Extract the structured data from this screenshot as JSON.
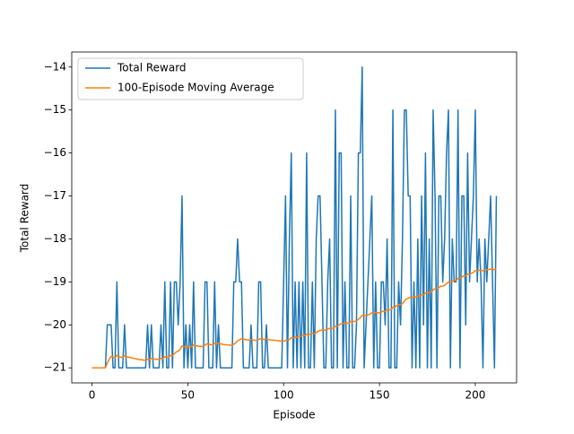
{
  "chart_data": {
    "type": "line",
    "x_label": "Episode",
    "y_label": "Total Reward",
    "x": [
      0,
      1,
      2,
      3,
      4,
      5,
      6,
      7,
      8,
      9,
      10,
      11,
      12,
      13,
      14,
      15,
      16,
      17,
      18,
      19,
      20,
      21,
      22,
      23,
      24,
      25,
      26,
      27,
      28,
      29,
      30,
      31,
      32,
      33,
      34,
      35,
      36,
      37,
      38,
      39,
      40,
      41,
      42,
      43,
      44,
      45,
      46,
      47,
      48,
      49,
      50,
      51,
      52,
      53,
      54,
      55,
      56,
      57,
      58,
      59,
      60,
      61,
      62,
      63,
      64,
      65,
      66,
      67,
      68,
      69,
      70,
      71,
      72,
      73,
      74,
      75,
      76,
      77,
      78,
      79,
      80,
      81,
      82,
      83,
      84,
      85,
      86,
      87,
      88,
      89,
      90,
      91,
      92,
      93,
      94,
      95,
      96,
      97,
      98,
      99,
      100,
      101,
      102,
      103,
      104,
      105,
      106,
      107,
      108,
      109,
      110,
      111,
      112,
      113,
      114,
      115,
      116,
      117,
      118,
      119,
      120,
      121,
      122,
      123,
      124,
      125,
      126,
      127,
      128,
      129,
      130,
      131,
      132,
      133,
      134,
      135,
      136,
      137,
      138,
      139,
      140,
      141,
      142,
      143,
      144,
      145,
      146,
      147,
      148,
      149,
      150,
      151,
      152,
      153,
      154,
      155,
      156,
      157,
      158,
      159,
      160,
      161,
      162,
      163,
      164,
      165,
      166,
      167,
      168,
      169,
      170,
      171,
      172,
      173,
      174,
      175,
      176,
      177,
      178,
      179,
      180,
      181,
      182,
      183,
      184,
      185,
      186,
      187,
      188,
      189,
      190,
      191,
      192,
      193,
      194,
      195,
      196,
      197,
      198,
      199,
      200,
      201,
      202,
      203,
      204,
      205,
      206,
      207,
      208,
      209,
      210,
      211
    ],
    "series": [
      {
        "name": "Total Reward",
        "color": "#1f77b4",
        "values": [
          -21,
          -21,
          -21,
          -21,
          -21,
          -21,
          -21,
          -21,
          -20,
          -20,
          -20,
          -21,
          -21,
          -19,
          -21,
          -21,
          -21,
          -20,
          -21,
          -21,
          -21,
          -21,
          -21,
          -21,
          -21,
          -21,
          -21,
          -21,
          -21,
          -20,
          -21,
          -20,
          -21,
          -21,
          -21,
          -21,
          -20,
          -21,
          -19,
          -21,
          -21,
          -19,
          -21,
          -19,
          -19,
          -20,
          -19,
          -17,
          -21,
          -20,
          -21,
          -20,
          -21,
          -19,
          -21,
          -21,
          -21,
          -21,
          -21,
          -19,
          -19,
          -21,
          -21,
          -21,
          -19,
          -21,
          -20,
          -21,
          -21,
          -21,
          -21,
          -21,
          -21,
          -21,
          -19,
          -19,
          -18,
          -19,
          -19,
          -21,
          -21,
          -21,
          -21,
          -20,
          -21,
          -21,
          -21,
          -19,
          -19,
          -21,
          -21,
          -20,
          -21,
          -21,
          -21,
          -21,
          -21,
          -21,
          -21,
          -21,
          -19,
          -17,
          -21,
          -18,
          -16,
          -21,
          -19,
          -21,
          -19,
          -21,
          -19,
          -21,
          -16,
          -21,
          -21,
          -19,
          -21,
          -18,
          -17,
          -17,
          -19,
          -21,
          -21,
          -19,
          -18,
          -21,
          -21,
          -15,
          -21,
          -16,
          -16,
          -21,
          -19,
          -21,
          -21,
          -17,
          -21,
          -21,
          -20,
          -16,
          -16,
          -14,
          -21,
          -20,
          -19,
          -18,
          -17,
          -21,
          -19,
          -21,
          -21,
          -19,
          -19,
          -20,
          -18,
          -21,
          -21,
          -15,
          -21,
          -21,
          -19,
          -20,
          -18,
          -15,
          -15,
          -17,
          -17,
          -21,
          -19,
          -21,
          -18,
          -21,
          -17,
          -20,
          -16,
          -21,
          -18,
          -21,
          -15,
          -17,
          -21,
          -17,
          -17,
          -19,
          -18,
          -16,
          -15,
          -21,
          -18,
          -19,
          -19,
          -15,
          -21,
          -17,
          -17,
          -20,
          -16,
          -19,
          -18,
          -17,
          -15,
          -19,
          -18,
          -19,
          -21,
          -18,
          -19,
          -18,
          -17,
          -19,
          -21,
          -17
        ]
      },
      {
        "name": "100-Episode Moving Average",
        "color": "#ff7f0e",
        "values": [
          -21,
          -21,
          -21,
          -21,
          -21,
          -21,
          -21,
          -21,
          -20.89,
          -20.8,
          -20.73,
          -20.75,
          -20.77,
          -20.71,
          -20.73,
          -20.75,
          -20.76,
          -20.72,
          -20.74,
          -20.75,
          -20.76,
          -20.77,
          -20.78,
          -20.79,
          -20.8,
          -20.81,
          -20.81,
          -20.82,
          -20.83,
          -20.8,
          -20.81,
          -20.78,
          -20.79,
          -20.8,
          -20.8,
          -20.81,
          -20.78,
          -20.79,
          -20.74,
          -20.75,
          -20.76,
          -20.71,
          -20.72,
          -20.67,
          -20.63,
          -20.61,
          -20.57,
          -20.49,
          -20.51,
          -20.5,
          -20.51,
          -20.5,
          -20.51,
          -20.47,
          -20.48,
          -20.49,
          -20.5,
          -20.5,
          -20.51,
          -20.47,
          -20.44,
          -20.45,
          -20.46,
          -20.47,
          -20.43,
          -20.44,
          -20.43,
          -20.44,
          -20.45,
          -20.46,
          -20.46,
          -20.47,
          -20.47,
          -20.48,
          -20.45,
          -20.42,
          -20.37,
          -20.35,
          -20.32,
          -20.33,
          -20.34,
          -20.35,
          -20.35,
          -20.34,
          -20.35,
          -20.36,
          -20.36,
          -20.34,
          -20.32,
          -20.33,
          -20.34,
          -20.33,
          -20.34,
          -20.35,
          -20.35,
          -20.36,
          -20.36,
          -20.37,
          -20.37,
          -20.38,
          -20.38,
          -20.36,
          -20.36,
          -20.34,
          -20.3,
          -20.3,
          -20.29,
          -20.29,
          -20.27,
          -20.27,
          -20.25,
          -20.25,
          -20.22,
          -20.22,
          -20.22,
          -20.2,
          -20.2,
          -20.18,
          -20.15,
          -20.13,
          -20.12,
          -20.12,
          -20.12,
          -20.1,
          -20.08,
          -20.08,
          -20.08,
          -20.03,
          -20.03,
          -20,
          -19.97,
          -19.97,
          -19.96,
          -19.96,
          -19.96,
          -19.92,
          -19.92,
          -19.92,
          -19.91,
          -19.87,
          -19.83,
          -19.78,
          -19.78,
          -19.78,
          -19.77,
          -19.75,
          -19.72,
          -19.72,
          -19.71,
          -19.72,
          -19.72,
          -19.7,
          -19.68,
          -19.68,
          -19.65,
          -19.65,
          -19.65,
          -19.59,
          -19.59,
          -19.55,
          -19.53,
          -19.53,
          -19.5,
          -19.45,
          -19.4,
          -19.38,
          -19.36,
          -19.36,
          -19.35,
          -19.35,
          -19.33,
          -19.33,
          -19.3,
          -19.3,
          -19.26,
          -19.26,
          -19.24,
          -19.24,
          -19.18,
          -19.16,
          -19.16,
          -19.13,
          -19.1,
          -19.1,
          -19.08,
          -19.04,
          -19,
          -19,
          -18.98,
          -18.97,
          -18.96,
          -18.92,
          -18.92,
          -18.89,
          -18.86,
          -18.86,
          -18.82,
          -18.82,
          -18.8,
          -18.78,
          -18.74,
          -18.74,
          -18.73,
          -18.73,
          -18.74,
          -18.72,
          -18.72,
          -18.71,
          -18.7,
          -18.7,
          -18.72,
          -18.7
        ]
      }
    ],
    "xlim": [
      -10.55,
      221.55
    ],
    "xticks": [
      0,
      50,
      100,
      150,
      200
    ],
    "ylim": [
      -21.35,
      -13.65
    ],
    "yticks": [
      {
        "value": -21,
        "label": "−21"
      },
      {
        "value": -20,
        "label": "−20"
      },
      {
        "value": -19,
        "label": "−19"
      },
      {
        "value": -18,
        "label": "−18"
      },
      {
        "value": -17,
        "label": "−17"
      },
      {
        "value": -16,
        "label": "−16"
      },
      {
        "value": -15,
        "label": "−15"
      },
      {
        "value": -14,
        "label": "−14"
      }
    ],
    "legend": "upper left"
  }
}
